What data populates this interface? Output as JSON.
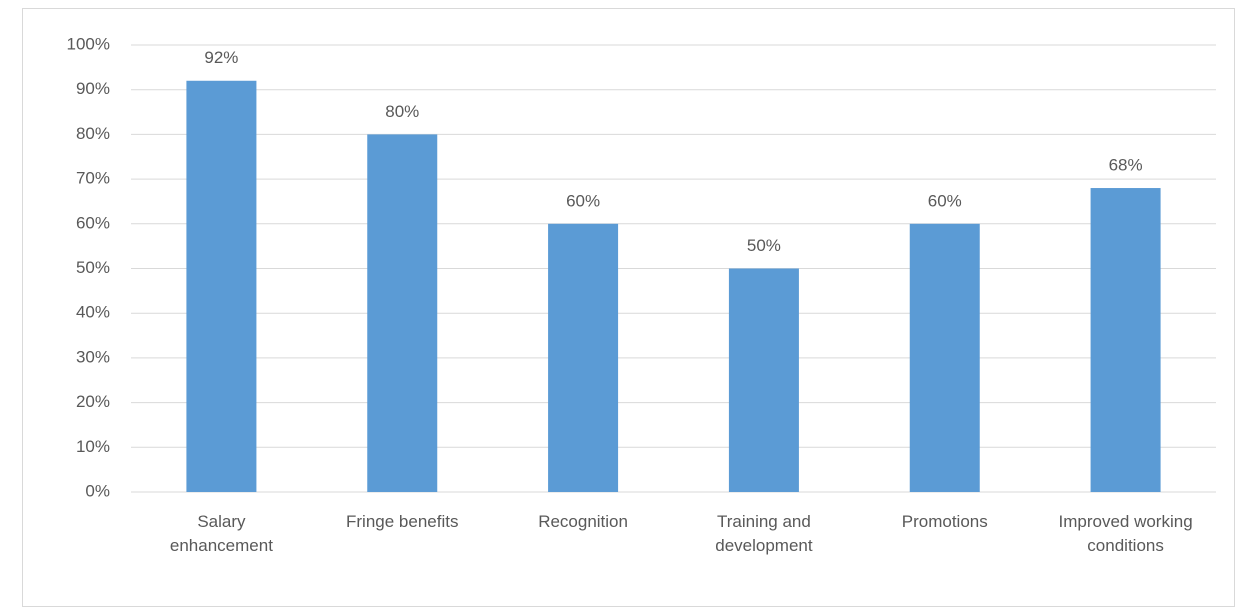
{
  "chart_data": {
    "type": "bar",
    "categories": [
      "Salary enhancement",
      "Fringe benefits",
      "Recognition",
      "Training and development",
      "Promotions",
      "Improved working conditions"
    ],
    "values": [
      92,
      80,
      60,
      50,
      60,
      68
    ],
    "value_labels": [
      "92%",
      "80%",
      "60%",
      "50%",
      "60%",
      "68%"
    ],
    "color": "#5b9bd5",
    "ylim": [
      0,
      100
    ],
    "yticks": [
      {
        "value": 0,
        "label": "0%"
      },
      {
        "value": 10,
        "label": "10%"
      },
      {
        "value": 20,
        "label": "20%"
      },
      {
        "value": 30,
        "label": "30%"
      },
      {
        "value": 40,
        "label": "40%"
      },
      {
        "value": 50,
        "label": "50%"
      },
      {
        "value": 60,
        "label": "60%"
      },
      {
        "value": 70,
        "label": "70%"
      },
      {
        "value": 80,
        "label": "80%"
      },
      {
        "value": 90,
        "label": "90%"
      },
      {
        "value": 100,
        "label": "100%"
      }
    ],
    "grid": true
  }
}
